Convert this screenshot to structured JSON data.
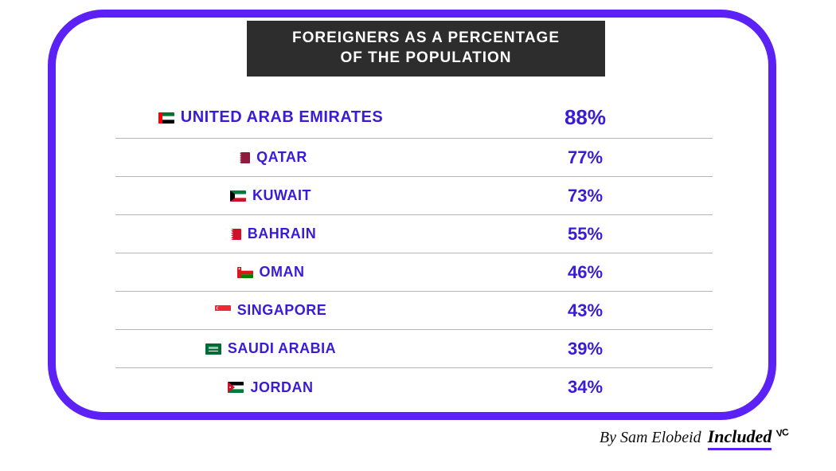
{
  "chart": {
    "type": "table",
    "title_line1": "FOREIGNERS AS A PERCENTAGE",
    "title_line2": "OF THE POPULATION",
    "frame_color": "#5b21f5",
    "title_bg": "#2d2d2d",
    "title_fg": "#ffffff",
    "text_color": "#3a1bd6",
    "row_separator_color": "#b8a8f0",
    "background_color": "#ffffff",
    "rows": [
      {
        "flag": "uae",
        "country": "UNITED ARAB EMIRATES",
        "percent": "88%"
      },
      {
        "flag": "qatar",
        "country": "QATAR",
        "percent": "77%"
      },
      {
        "flag": "kuwait",
        "country": "KUWAIT",
        "percent": "73%"
      },
      {
        "flag": "bahrain",
        "country": "BAHRAIN",
        "percent": "55%"
      },
      {
        "flag": "oman",
        "country": "OMAN",
        "percent": "46%"
      },
      {
        "flag": "singapore",
        "country": "SINGAPORE",
        "percent": "43%"
      },
      {
        "flag": "saudi",
        "country": "SAUDI ARABIA",
        "percent": "39%"
      },
      {
        "flag": "jordan",
        "country": "JORDAN",
        "percent": "34%"
      }
    ]
  },
  "attribution": {
    "byline": "By Sam Elobeid",
    "brand": "Included",
    "brand_suffix": "VC",
    "underline_color": "#5b21f5"
  }
}
